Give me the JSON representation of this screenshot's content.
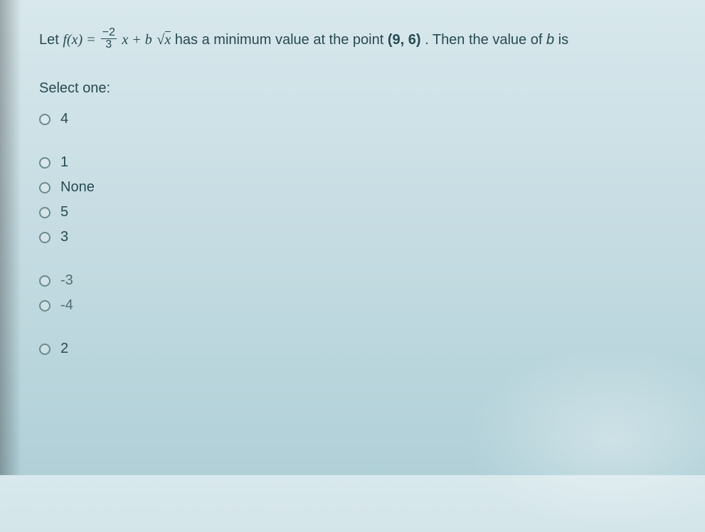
{
  "question": {
    "prefix": "Let ",
    "f_open": "f(x) = ",
    "frac_num": "−2",
    "frac_den": "3",
    "after_frac": "x + b",
    "sqrt_inner": "x",
    "mid_text": " has a minimum value at the point ",
    "point": "(9, 6)",
    "tail_text": ". Then the value of ",
    "b_var": "b",
    "tail_end": " is"
  },
  "select_one": "Select one:",
  "options": [
    {
      "label": "4",
      "dim": false
    },
    {
      "label": "1",
      "dim": false
    },
    {
      "label": "None",
      "dim": false
    },
    {
      "label": "5",
      "dim": false
    },
    {
      "label": "3",
      "dim": false
    },
    {
      "label": "-3",
      "dim": true
    },
    {
      "label": "-4",
      "dim": true
    },
    {
      "label": "2",
      "dim": false
    }
  ],
  "colors": {
    "text": "#274a52",
    "bg_top": "#d8e8ec",
    "bg_bottom": "#b0d0d8",
    "radio_border": "#6b8a90"
  }
}
